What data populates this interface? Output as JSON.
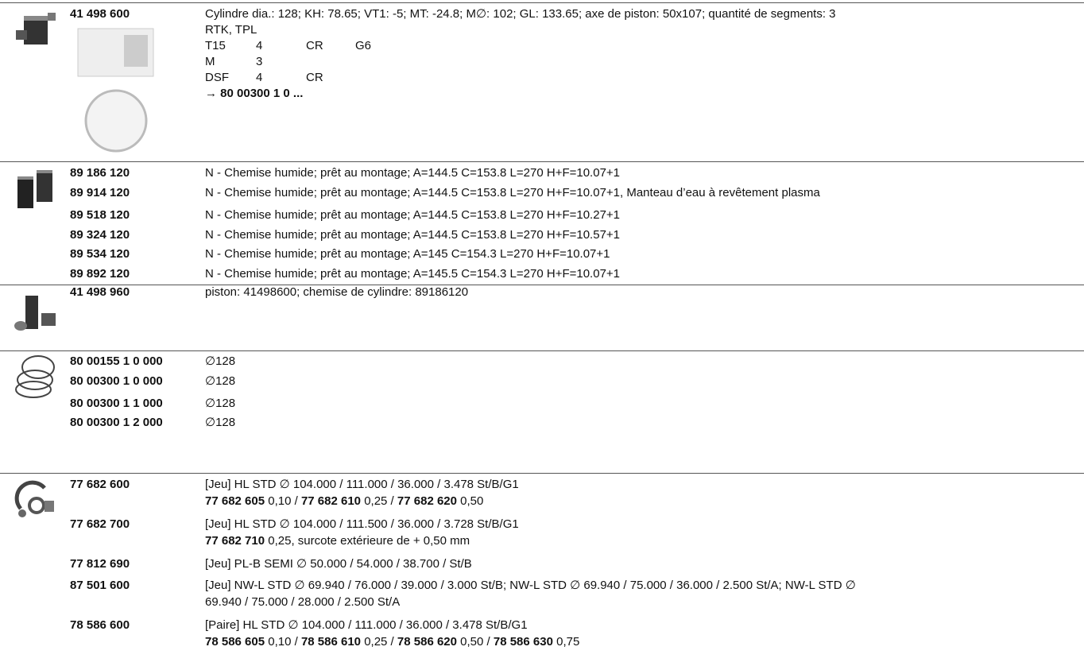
{
  "sections": [
    {
      "rows": [
        {
          "part": "41 498 600",
          "lines": [
            [
              {
                "t": "Cylindre dia.: 128; KH: 78.65; VT1: -5; MT: -24.8; M∅: 102; GL: 133.65; axe de piston: 50x107; quantité de segments: 3"
              }
            ],
            [
              {
                "t": "RTK, TPL"
              }
            ]
          ],
          "table": [
            [
              "T15",
              "4",
              "CR",
              "G6"
            ],
            [
              "M",
              "3"
            ],
            [
              "DSF",
              "4",
              "CR"
            ]
          ],
          "ref": [
            {
              "t": "→ "
            },
            {
              "t": "80 00300 1 0 ...",
              "b": true
            }
          ]
        }
      ]
    },
    {
      "rows": [
        {
          "part": "89 186 120",
          "lines": [
            [
              {
                "t": "N - Chemise humide; prêt au montage; A=144.5 C=153.8 L=270 H+F=10.07+1"
              }
            ]
          ]
        },
        {
          "part": "89 914 120",
          "lines": [
            [
              {
                "t": "N - Chemise humide; prêt au montage; A=144.5 C=153.8 L=270 H+F=10.07+1, Manteau d’eau à revêtement plasma"
              }
            ]
          ]
        },
        {
          "part": "89 518 120",
          "lines": [
            [
              {
                "t": "N - Chemise humide; prêt au montage; A=144.5 C=153.8 L=270 H+F=10.27+1"
              }
            ]
          ]
        },
        {
          "part": "89 324 120",
          "lines": [
            [
              {
                "t": "N - Chemise humide; prêt au montage; A=144.5 C=153.8 L=270 H+F=10.57+1"
              }
            ]
          ]
        },
        {
          "part": "89 534 120",
          "lines": [
            [
              {
                "t": "N - Chemise humide; prêt au montage; A=145 C=154.3 L=270 H+F=10.07+1"
              }
            ]
          ]
        },
        {
          "part": "89 892 120",
          "lines": [
            [
              {
                "t": "N - Chemise humide; prêt au montage; A=145.5 C=154.3 L=270 H+F=10.07+1"
              }
            ]
          ]
        }
      ]
    },
    {
      "rows": [
        {
          "part": "41 498 960",
          "lines": [
            [
              {
                "t": "piston: 41498600; chemise de cylindre: 89186120"
              }
            ]
          ]
        }
      ]
    },
    {
      "rows": [
        {
          "part": "80 00155 1 0 000",
          "lines": [
            [
              {
                "t": "∅128"
              }
            ]
          ]
        },
        {
          "part": "80 00300 1 0 000",
          "lines": [
            [
              {
                "t": "∅128"
              }
            ]
          ]
        },
        {
          "part": "80 00300 1 1 000",
          "lines": [
            [
              {
                "t": "∅128"
              }
            ]
          ]
        },
        {
          "part": "80 00300 1 2 000",
          "lines": [
            [
              {
                "t": "∅128"
              }
            ]
          ]
        }
      ]
    },
    {
      "rows": [
        {
          "part": "77 682 600",
          "lines": [
            [
              {
                "t": "[Jeu] HL STD ∅ 104.000 / 111.000 / 36.000 / 3.478 St/B/G1"
              }
            ],
            [
              {
                "t": "77 682 605",
                "b": true
              },
              {
                "t": " 0,10 / "
              },
              {
                "t": "77 682 610",
                "b": true
              },
              {
                "t": " 0,25 / "
              },
              {
                "t": "77 682 620",
                "b": true
              },
              {
                "t": " 0,50"
              }
            ]
          ]
        },
        {
          "part": "77 682 700",
          "lines": [
            [
              {
                "t": "[Jeu] HL STD ∅ 104.000 / 111.500 / 36.000 / 3.728 St/B/G1"
              }
            ],
            [
              {
                "t": "77 682 710",
                "b": true
              },
              {
                "t": " 0,25, surcote extérieure de + 0,50 mm"
              }
            ]
          ]
        },
        {
          "part": "77 812 690",
          "lines": [
            [
              {
                "t": "[Jeu] PL-B SEMI ∅ 50.000 / 54.000 / 38.700 / St/B"
              }
            ]
          ]
        },
        {
          "part": "87 501 600",
          "lines": [
            [
              {
                "t": "[Jeu] NW-L STD ∅ 69.940 / 76.000 / 39.000 / 3.000 St/B; NW-L STD ∅ 69.940 / 75.000 / 36.000 / 2.500 St/A; NW-L STD ∅"
              }
            ],
            [
              {
                "t": "69.940 / 75.000 / 28.000 / 2.500 St/A"
              }
            ]
          ]
        },
        {
          "part": "78 586 600",
          "lines": [
            [
              {
                "t": "[Paire] HL STD ∅ 104.000 / 111.000 / 36.000 / 3.478 St/B/G1"
              }
            ],
            [
              {
                "t": "78 586 605",
                "b": true
              },
              {
                "t": " 0,10 / "
              },
              {
                "t": "78 586 610",
                "b": true
              },
              {
                "t": " 0,25 / "
              },
              {
                "t": "78 586 620",
                "b": true
              },
              {
                "t": " 0,50 / "
              },
              {
                "t": "78 586 630",
                "b": true
              },
              {
                "t": " 0,75"
              }
            ]
          ]
        }
      ]
    }
  ]
}
